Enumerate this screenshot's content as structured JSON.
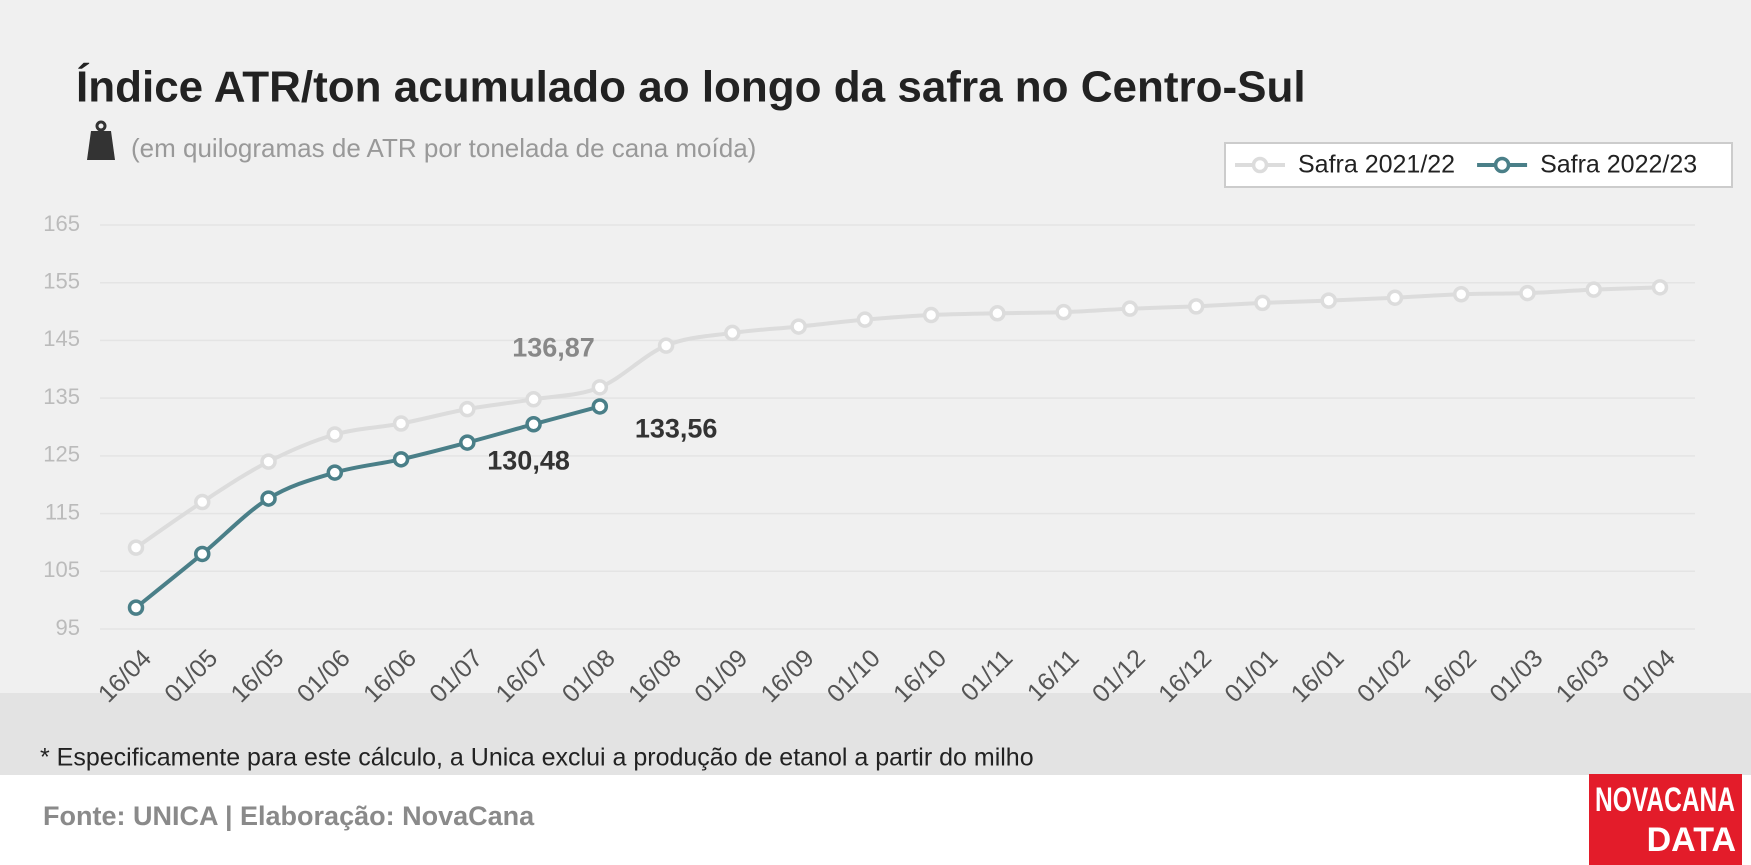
{
  "chart_data": {
    "type": "line",
    "title": "Índice ATR/ton acumulado ao longo da safra no Centro-Sul",
    "subtitle": "(em quilogramas de ATR por tonelada de cana moída)",
    "categories": [
      "16/04",
      "01/05",
      "16/05",
      "01/06",
      "16/06",
      "01/07",
      "16/07",
      "01/08",
      "16/08",
      "01/09",
      "16/09",
      "01/10",
      "16/10",
      "01/11",
      "16/11",
      "01/12",
      "16/12",
      "01/01",
      "16/01",
      "01/02",
      "16/02",
      "01/03",
      "16/03",
      "01/04"
    ],
    "series": [
      {
        "name": "Safra 2021/22",
        "color": "#dcdcdc",
        "values": [
          109.1,
          117.0,
          124.0,
          128.7,
          130.6,
          133.1,
          134.8,
          136.87,
          144.1,
          146.3,
          147.4,
          148.6,
          149.4,
          149.7,
          149.9,
          150.5,
          150.9,
          151.5,
          151.9,
          152.4,
          153.0,
          153.2,
          153.8,
          154.2
        ],
        "value_labels": [
          null,
          null,
          null,
          null,
          null,
          null,
          null,
          "136,87",
          null,
          null,
          null,
          null,
          null,
          null,
          null,
          null,
          null,
          null,
          null,
          null,
          null,
          null,
          null,
          null
        ]
      },
      {
        "name": "Safra 2022/23",
        "color": "#4a7f88",
        "values": [
          98.7,
          108.0,
          117.6,
          122.1,
          124.4,
          127.3,
          130.48,
          133.56,
          null,
          null,
          null,
          null,
          null,
          null,
          null,
          null,
          null,
          null,
          null,
          null,
          null,
          null,
          null,
          null
        ],
        "value_labels": [
          null,
          null,
          null,
          null,
          null,
          null,
          "130,48",
          "133,56",
          null,
          null,
          null,
          null,
          null,
          null,
          null,
          null,
          null,
          null,
          null,
          null,
          null,
          null,
          null,
          null
        ]
      }
    ],
    "ylim": [
      95,
      165
    ],
    "yticks": [
      95,
      105,
      115,
      125,
      135,
      145,
      155,
      165
    ],
    "grid": true,
    "legend": "top-right",
    "footnote": "* Especificamente para este cálculo, a Unica exclui a produção de etanol a partir do milho",
    "source": "Fonte: UNICA | Elaboração: NovaCana",
    "logo": [
      "NOVACANA",
      "DATA"
    ]
  }
}
